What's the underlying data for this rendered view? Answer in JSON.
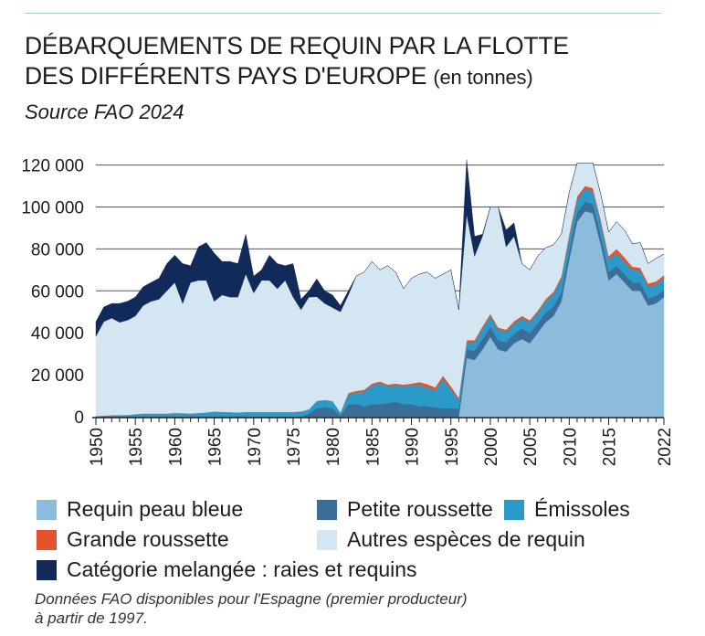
{
  "header": {
    "title_line1": "DÉBARQUEMENTS DE REQUIN PAR LA FLOTTE",
    "title_line2": "DES DIFFÉRENTS PAYS D'EUROPE",
    "title_unit": "(en tonnes)",
    "source": "Source FAO 2024"
  },
  "footnote": {
    "line1": "Données FAO disponibles pour l'Espagne (premier producteur)",
    "line2": "à partir de 1997."
  },
  "chart_data": {
    "type": "area",
    "stacked": true,
    "title": "DÉBARQUEMENTS DE REQUIN PAR LA FLOTTE DES DIFFÉRENTS PAYS D'EUROPE (en tonnes)",
    "subtitle": "Source FAO 2024",
    "xlabel": "",
    "ylabel": "",
    "x": [
      1950,
      1951,
      1952,
      1953,
      1954,
      1955,
      1956,
      1957,
      1958,
      1959,
      1960,
      1961,
      1962,
      1963,
      1964,
      1965,
      1966,
      1967,
      1968,
      1969,
      1970,
      1971,
      1972,
      1973,
      1974,
      1975,
      1976,
      1977,
      1978,
      1979,
      1980,
      1981,
      1982,
      1983,
      1984,
      1985,
      1986,
      1987,
      1988,
      1989,
      1990,
      1991,
      1992,
      1993,
      1994,
      1995,
      1996,
      1997,
      1998,
      1999,
      2000,
      2001,
      2002,
      2003,
      2004,
      2005,
      2006,
      2007,
      2008,
      2009,
      2010,
      2011,
      2012,
      2013,
      2014,
      2015,
      2016,
      2017,
      2018,
      2019,
      2020,
      2021,
      2022
    ],
    "x_ticks": [
      1950,
      1955,
      1960,
      1965,
      1970,
      1975,
      1980,
      1985,
      1990,
      1995,
      2000,
      2005,
      2010,
      2015,
      2022
    ],
    "y_ticks": [
      0,
      20000,
      40000,
      60000,
      80000,
      100000,
      120000
    ],
    "y_tick_labels": [
      "0",
      "20 000",
      "40 000",
      "60 000",
      "80 000",
      "100 000",
      "120 000"
    ],
    "ylim": [
      0,
      122000
    ],
    "grid": "horizontal",
    "legend_position": "bottom",
    "series": [
      {
        "name": "Requin peau bleue",
        "color": "#8cbcdc",
        "values": [
          0,
          0,
          0,
          0,
          0,
          0,
          0,
          0,
          0,
          0,
          0,
          0,
          0,
          0,
          0,
          0,
          0,
          0,
          0,
          0,
          0,
          0,
          0,
          0,
          0,
          0,
          0,
          0,
          0,
          0,
          0,
          0,
          0,
          0,
          0,
          0,
          0,
          0,
          0,
          0,
          0,
          0,
          0,
          0,
          0,
          0,
          0,
          28000,
          27000,
          32000,
          38000,
          32000,
          31000,
          35000,
          37000,
          35000,
          40000,
          45000,
          48000,
          55000,
          75000,
          93000,
          98000,
          97000,
          82000,
          65000,
          68000,
          64000,
          60000,
          60000,
          53000,
          54000,
          57000
        ]
      },
      {
        "name": "Petite roussette",
        "color": "#3b6d99",
        "values": [
          0,
          0,
          0,
          0,
          0,
          0,
          0,
          0,
          0,
          0,
          0,
          0,
          0,
          0,
          0,
          0,
          0,
          0,
          0,
          0,
          0,
          0,
          0,
          0,
          0,
          0,
          0,
          1500,
          4000,
          4500,
          4000,
          500,
          6000,
          6000,
          5000,
          6000,
          6000,
          6500,
          7000,
          6000,
          6000,
          5000,
          5000,
          4500,
          4000,
          4000,
          4000,
          4000,
          4500,
          5000,
          5000,
          4500,
          4500,
          4500,
          5000,
          5000,
          4500,
          4500,
          4500,
          4500,
          4500,
          4500,
          4500,
          4500,
          4500,
          4000,
          4000,
          4000,
          4000,
          4000,
          3500,
          3500,
          3500
        ]
      },
      {
        "name": "Émissoles",
        "color": "#2b9ac9",
        "values": [
          300,
          500,
          700,
          800,
          800,
          1200,
          1500,
          1500,
          1500,
          1500,
          1800,
          1700,
          1500,
          1800,
          2000,
          2500,
          2300,
          2200,
          2000,
          2300,
          2300,
          2300,
          2300,
          2300,
          2300,
          2300,
          2500,
          2000,
          3500,
          3500,
          3500,
          1500,
          4500,
          5500,
          7000,
          9000,
          10000,
          8000,
          8000,
          8500,
          9000,
          10000,
          9000,
          8000,
          14000,
          9000,
          4000,
          3500,
          4000,
          5000,
          5000,
          5000,
          5000,
          5000,
          5000,
          5000,
          5000,
          5500,
          6000,
          6500,
          6000,
          6000,
          6000,
          6000,
          6000,
          6000,
          6000,
          6000,
          6000,
          5500,
          5500,
          5500,
          5500
        ]
      },
      {
        "name": "Grande roussette",
        "color": "#e4532a",
        "values": [
          0,
          0,
          0,
          0,
          0,
          0,
          0,
          0,
          0,
          0,
          0,
          0,
          0,
          0,
          0,
          0,
          0,
          0,
          0,
          0,
          0,
          0,
          0,
          0,
          0,
          0,
          0,
          0,
          0,
          0,
          0,
          0,
          800,
          800,
          800,
          800,
          800,
          800,
          800,
          800,
          800,
          1500,
          1500,
          1500,
          1500,
          1500,
          1000,
          1000,
          1000,
          1000,
          1000,
          1000,
          1000,
          1000,
          1000,
          1000,
          1000,
          1000,
          1000,
          1000,
          1500,
          1500,
          1500,
          1500,
          1500,
          1500,
          2000,
          2000,
          1500,
          1500,
          1500,
          1500,
          1500
        ]
      },
      {
        "name": "Autres espèces de requin",
        "color": "#d4e6f1",
        "values": [
          38000,
          44800,
          46300,
          44200,
          45200,
          46800,
          51500,
          53500,
          54500,
          58500,
          62200,
          52300,
          62500,
          63200,
          63000,
          52500,
          55700,
          54800,
          55000,
          65700,
          56700,
          62700,
          62700,
          58700,
          62700,
          54700,
          48500,
          53500,
          49700,
          46000,
          44500,
          48000,
          46700,
          54700,
          56200,
          58200,
          53200,
          56700,
          53200,
          45700,
          50200,
          51500,
          53500,
          52000,
          48500,
          55500,
          42000,
          60000,
          40000,
          43000,
          51000,
          57500,
          39500,
          40500,
          25000,
          24000,
          26000,
          24500,
          22500,
          20000,
          20000,
          16000,
          11000,
          12000,
          12000,
          11500,
          13000,
          13000,
          11000,
          12000,
          9500,
          11000,
          10000
        ]
      },
      {
        "name": "Catégorie melangée : raies et requins",
        "color": "#122a59",
        "values": [
          7000,
          7000,
          7000,
          9000,
          9000,
          9000,
          9000,
          9000,
          10000,
          13000,
          13000,
          19000,
          8000,
          16000,
          18000,
          23000,
          16000,
          17000,
          16000,
          19000,
          8000,
          5000,
          12000,
          12000,
          7000,
          16000,
          5000,
          3000,
          8500,
          6000,
          6000,
          3000,
          2000,
          0,
          0,
          0,
          0,
          0,
          0,
          0,
          0,
          0,
          0,
          0,
          0,
          0,
          0,
          26000,
          9500,
          1000,
          0,
          0,
          8000,
          6500,
          0,
          0,
          0,
          0,
          0,
          0,
          0,
          0,
          0,
          0,
          0,
          0,
          0,
          0,
          0,
          0,
          0,
          0,
          0
        ]
      }
    ]
  }
}
